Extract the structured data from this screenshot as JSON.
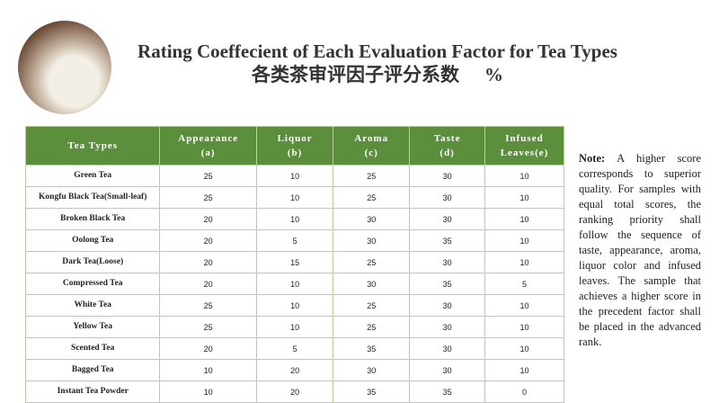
{
  "header": {
    "title": "Rating Coeffecient of Each Evaluation Factor for Tea Types",
    "subtitle": "各类茶审评因子评分系数",
    "unit": "%"
  },
  "table": {
    "columns": [
      {
        "name": "Tea Types"
      },
      {
        "name": "Appearance",
        "code": "(a)"
      },
      {
        "name": "Liquor",
        "code": "(b)"
      },
      {
        "name": "Aroma",
        "code": "(c)"
      },
      {
        "name": "Taste",
        "code": "(d)"
      },
      {
        "name": "Infused",
        "code": "Leaves(e)"
      }
    ],
    "rows": [
      [
        "Green Tea",
        25,
        10,
        25,
        30,
        10
      ],
      [
        "Kongfu Black Tea(Small-leaf)",
        25,
        10,
        25,
        30,
        10
      ],
      [
        "Broken Black Tea",
        20,
        10,
        30,
        30,
        10
      ],
      [
        "Oolong Tea",
        20,
        5,
        30,
        35,
        10
      ],
      [
        "Dark Tea(Loose)",
        20,
        15,
        25,
        30,
        10
      ],
      [
        "Compressed Tea",
        20,
        10,
        30,
        35,
        5
      ],
      [
        "White Tea",
        25,
        10,
        25,
        30,
        10
      ],
      [
        "Yellow Tea",
        25,
        10,
        25,
        30,
        10
      ],
      [
        "Scented Tea",
        20,
        5,
        35,
        30,
        10
      ],
      [
        "Bagged Tea",
        10,
        20,
        30,
        30,
        10
      ],
      [
        "Instant Tea Powder",
        10,
        20,
        35,
        35,
        0
      ]
    ]
  },
  "note": {
    "label": "Note:",
    "text": "A higher score corresponds to superior quality. For samples with equal total scores, the ranking priority shall follow the sequence of taste, appearance, aroma, liquor color and infused leaves. The sample that achieves a higher score in the precedent factor shall be placed in the advanced rank."
  }
}
